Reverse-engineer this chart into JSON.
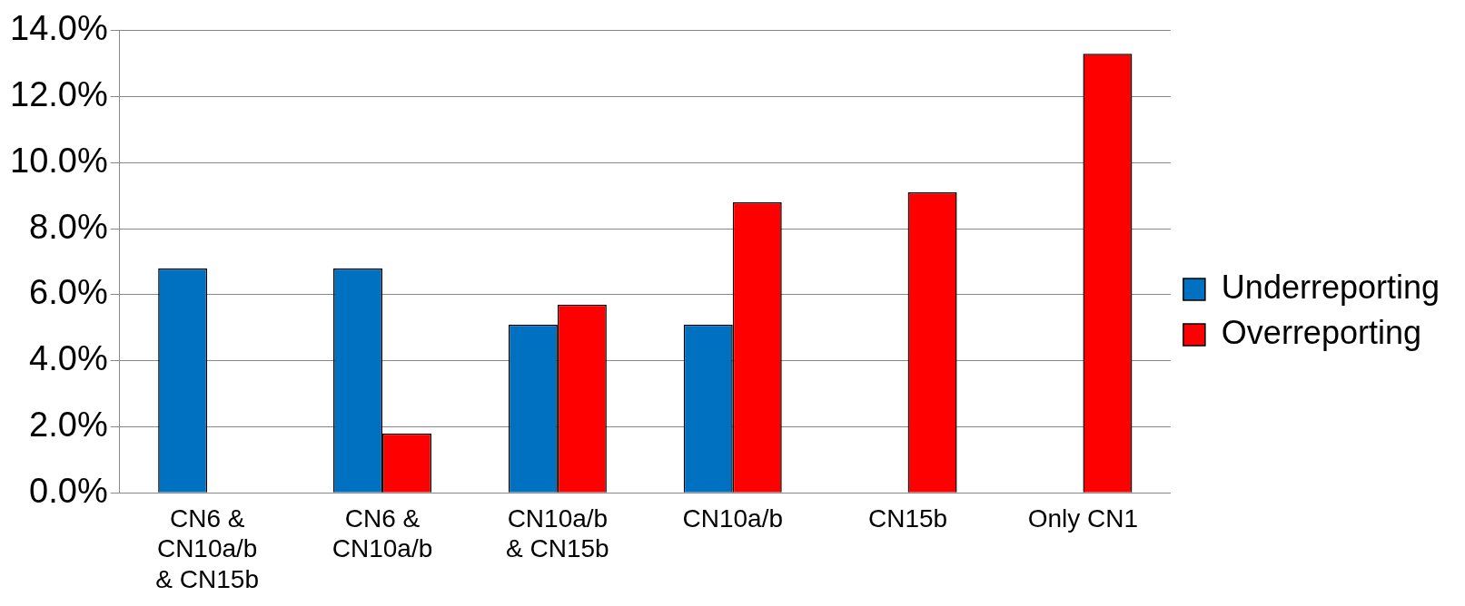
{
  "chart_data": {
    "type": "bar",
    "categories": [
      "CN6 &\nCN10a/b\n& CN15b",
      "CN6 &\nCN10a/b",
      "CN10a/b\n& CN15b",
      "CN10a/b",
      "CN15b",
      "Only CN1"
    ],
    "series": [
      {
        "name": "Underreporting",
        "color": "#0070c0",
        "values": [
          6.8,
          6.8,
          5.1,
          5.1,
          null,
          null
        ]
      },
      {
        "name": "Overreporting",
        "color": "#ff0000",
        "values": [
          null,
          1.8,
          5.7,
          8.8,
          9.1,
          13.3
        ]
      }
    ],
    "ylim": [
      0,
      14
    ],
    "yticks": [
      {
        "value": 0,
        "label": "0.0%"
      },
      {
        "value": 2,
        "label": "2.0%"
      },
      {
        "value": 4,
        "label": "4.0%"
      },
      {
        "value": 6,
        "label": "6.0%"
      },
      {
        "value": 8,
        "label": "8.0%"
      },
      {
        "value": 10,
        "label": "10.0%"
      },
      {
        "value": 12,
        "label": "12.0%"
      },
      {
        "value": 14,
        "label": "14.0%"
      }
    ],
    "grid": "y",
    "legend": "right"
  }
}
